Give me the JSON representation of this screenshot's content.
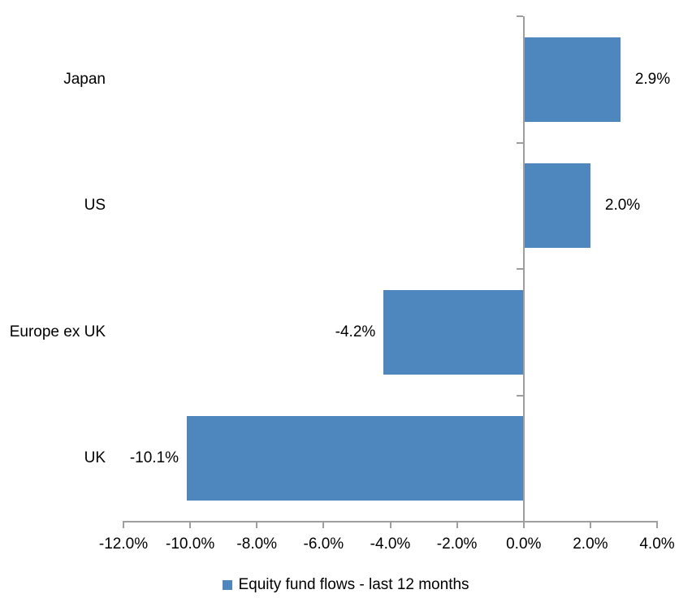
{
  "chart_data": {
    "type": "bar",
    "orientation": "horizontal",
    "title": "",
    "categories": [
      "Japan",
      "US",
      "Europe ex UK",
      "UK"
    ],
    "values": [
      2.9,
      2.0,
      -4.2,
      -10.1
    ],
    "value_labels": [
      "2.9%",
      "2.0%",
      "-4.2%",
      "-10.1%"
    ],
    "series": [
      {
        "name": "Equity fund flows - last 12 months",
        "values": [
          2.9,
          2.0,
          -4.2,
          -10.1
        ]
      }
    ],
    "xlim": [
      -12,
      4
    ],
    "x_ticks": [
      -12,
      -10,
      -8,
      -6,
      -4,
      -2,
      0,
      2,
      4
    ],
    "x_tick_labels": [
      "-12.0%",
      "-10.0%",
      "-8.0%",
      "-6.0%",
      "-4.0%",
      "-2.0%",
      "0.0%",
      "2.0%",
      "4.0%"
    ],
    "grid": false,
    "legend_position": "bottom",
    "bar_color": "#4E86BE",
    "axis_color": "#9E9E9E",
    "text_color": "#000000",
    "background_color": "#FFFFFF"
  },
  "legend": {
    "label": "Equity fund flows - last 12 months",
    "marker_color": "#4E86BE"
  }
}
